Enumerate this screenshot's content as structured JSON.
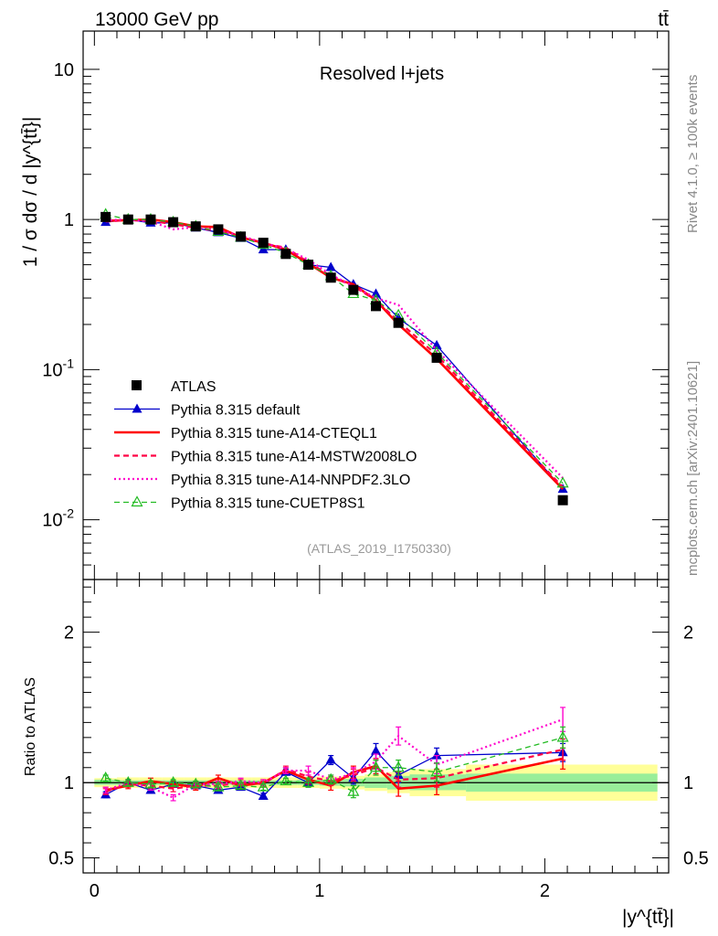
{
  "header": {
    "energy_label": "13000 GeV pp",
    "process_label": "tt̄",
    "analysis_title": "Resolved l+jets",
    "analysis_id": "(ATLAS_2019_I1750330)",
    "side_label_top": "Rivet 4.1.0, ≥ 100k events",
    "side_label_bottom": "mcplots.cern.ch [arXiv:2401.10621]"
  },
  "chart_data": [
    {
      "type": "line",
      "panel": "main",
      "ylabel": "1 / σ dσ / d |y^{tt̄}|",
      "yscale": "log",
      "ylim": [
        0.004,
        18
      ],
      "xlim": [
        -0.05,
        2.55
      ],
      "y_ticks": [
        {
          "value": 10,
          "label": "10"
        },
        {
          "value": 1,
          "label": "1"
        },
        {
          "value": 0.1,
          "label": "10^{-1}"
        },
        {
          "value": 0.01,
          "label": "10^{-2}"
        }
      ],
      "x": [
        0.05,
        0.15,
        0.25,
        0.35,
        0.45,
        0.55,
        0.65,
        0.75,
        0.85,
        0.95,
        1.05,
        1.15,
        1.25,
        1.35,
        1.52,
        2.08
      ],
      "series": [
        {
          "name": "ATLAS",
          "color": "#000000",
          "style": "data",
          "values": [
            1.04,
            1.0,
            1.0,
            0.96,
            0.9,
            0.86,
            0.77,
            0.7,
            0.59,
            0.5,
            0.41,
            0.34,
            0.265,
            0.205,
            0.12,
            0.0135
          ]
        },
        {
          "name": "Pythia 8.315 default",
          "color": "#0000cc",
          "style": "line-triangle",
          "values": [
            0.96,
            1.0,
            0.95,
            0.95,
            0.88,
            0.82,
            0.75,
            0.63,
            0.63,
            0.5,
            0.48,
            0.37,
            0.32,
            0.22,
            0.145,
            0.016
          ]
        },
        {
          "name": "Pythia 8.315 tune-A14-CTEQL1",
          "color": "#ff0000",
          "style": "line",
          "values": [
            0.98,
            0.99,
            1.0,
            0.96,
            0.9,
            0.89,
            0.76,
            0.7,
            0.63,
            0.51,
            0.41,
            0.37,
            0.29,
            0.2,
            0.118,
            0.016
          ]
        },
        {
          "name": "Pythia 8.315 tune-A14-MSTW2008LO",
          "color": "#ff0044",
          "style": "dashed",
          "values": [
            0.97,
            0.99,
            0.98,
            0.93,
            0.88,
            0.84,
            0.77,
            0.69,
            0.65,
            0.52,
            0.42,
            0.36,
            0.29,
            0.21,
            0.125,
            0.0165
          ]
        },
        {
          "name": "Pythia 8.315 tune-A14-NNPDF2.3LO",
          "color": "#ff00cc",
          "style": "dotted",
          "values": [
            0.99,
            1.0,
            0.97,
            0.86,
            0.89,
            0.85,
            0.78,
            0.7,
            0.64,
            0.54,
            0.43,
            0.36,
            0.3,
            0.27,
            0.135,
            0.019
          ]
        },
        {
          "name": "Pythia 8.315 tune-CUETP8S1",
          "color": "#22bb22",
          "style": "dashed-open-triangle",
          "values": [
            1.08,
            1.0,
            1.0,
            0.96,
            0.9,
            0.83,
            0.76,
            0.68,
            0.6,
            0.5,
            0.42,
            0.32,
            0.29,
            0.23,
            0.13,
            0.0175
          ]
        }
      ],
      "legend": "bottom-left"
    },
    {
      "type": "line",
      "panel": "ratio",
      "ylabel": "Ratio to ATLAS",
      "xlabel": "|y^{tt̄}|",
      "ylim": [
        0.4,
        2.35
      ],
      "xlim": [
        -0.05,
        2.55
      ],
      "reference_line": 1,
      "y_ticks": [
        {
          "value": 2,
          "label": "2"
        },
        {
          "value": 1,
          "label": "1"
        },
        {
          "value": 0.5,
          "label": "0.5"
        }
      ],
      "x_ticks": [
        {
          "value": 0,
          "label": "0"
        },
        {
          "value": 1,
          "label": "1"
        },
        {
          "value": 2,
          "label": "2"
        }
      ],
      "uncertainty_bands": [
        {
          "x0": 0.0,
          "x1": 0.1,
          "stat": [
            0.985,
            1.02
          ],
          "total": [
            0.97,
            1.03
          ]
        },
        {
          "x0": 0.1,
          "x1": 0.2,
          "stat": [
            0.985,
            1.015
          ],
          "total": [
            0.965,
            1.035
          ]
        },
        {
          "x0": 0.2,
          "x1": 0.3,
          "stat": [
            0.985,
            1.015
          ],
          "total": [
            0.965,
            1.035
          ]
        },
        {
          "x0": 0.3,
          "x1": 0.4,
          "stat": [
            0.985,
            1.015
          ],
          "total": [
            0.965,
            1.035
          ]
        },
        {
          "x0": 0.4,
          "x1": 0.5,
          "stat": [
            0.985,
            1.015
          ],
          "total": [
            0.965,
            1.035
          ]
        },
        {
          "x0": 0.5,
          "x1": 0.6,
          "stat": [
            0.985,
            1.015
          ],
          "total": [
            0.965,
            1.035
          ]
        },
        {
          "x0": 0.6,
          "x1": 0.7,
          "stat": [
            0.985,
            1.015
          ],
          "total": [
            0.965,
            1.035
          ]
        },
        {
          "x0": 0.7,
          "x1": 0.8,
          "stat": [
            0.985,
            1.015
          ],
          "total": [
            0.965,
            1.035
          ]
        },
        {
          "x0": 0.8,
          "x1": 0.9,
          "stat": [
            0.985,
            1.015
          ],
          "total": [
            0.965,
            1.035
          ]
        },
        {
          "x0": 0.9,
          "x1": 1.0,
          "stat": [
            0.985,
            1.02
          ],
          "total": [
            0.965,
            1.04
          ]
        },
        {
          "x0": 1.0,
          "x1": 1.1,
          "stat": [
            0.98,
            1.02
          ],
          "total": [
            0.96,
            1.04
          ]
        },
        {
          "x0": 1.1,
          "x1": 1.2,
          "stat": [
            0.975,
            1.025
          ],
          "total": [
            0.955,
            1.045
          ]
        },
        {
          "x0": 1.2,
          "x1": 1.3,
          "stat": [
            0.965,
            1.035
          ],
          "total": [
            0.945,
            1.055
          ]
        },
        {
          "x0": 1.3,
          "x1": 1.4,
          "stat": [
            0.955,
            1.045
          ],
          "total": [
            0.93,
            1.07
          ]
        },
        {
          "x0": 1.4,
          "x1": 1.65,
          "stat": [
            0.95,
            1.055
          ],
          "total": [
            0.91,
            1.09
          ]
        },
        {
          "x0": 1.65,
          "x1": 2.5,
          "stat": [
            0.94,
            1.06
          ],
          "total": [
            0.88,
            1.12
          ]
        }
      ],
      "series": [
        {
          "name": "ATLAS",
          "color": "#000000",
          "style": "reference",
          "values": [
            1,
            1,
            1,
            1,
            1,
            1,
            1,
            1,
            1,
            1,
            1,
            1,
            1,
            1,
            1,
            1
          ]
        },
        {
          "name": "Pythia 8.315 default",
          "color": "#0000cc",
          "style": "line-triangle",
          "values": [
            0.92,
            1.0,
            0.95,
            0.99,
            0.98,
            0.95,
            0.97,
            0.91,
            1.07,
            1.0,
            1.15,
            1.03,
            1.21,
            1.05,
            1.18,
            1.2
          ],
          "errors": [
            0.02,
            0.02,
            0.02,
            0.02,
            0.02,
            0.02,
            0.02,
            0.02,
            0.02,
            0.03,
            0.03,
            0.04,
            0.05,
            0.05,
            0.05,
            0.06
          ]
        },
        {
          "name": "Pythia 8.315 tune-A14-CTEQL1",
          "color": "#ff0000",
          "style": "line",
          "values": [
            0.95,
            0.98,
            1.01,
            0.99,
            0.97,
            1.03,
            0.98,
            1.0,
            1.08,
            1.02,
            0.98,
            1.07,
            1.11,
            0.96,
            0.98,
            1.16
          ],
          "errors": [
            0.02,
            0.02,
            0.02,
            0.02,
            0.02,
            0.02,
            0.02,
            0.02,
            0.02,
            0.03,
            0.03,
            0.04,
            0.05,
            0.05,
            0.06,
            0.07
          ]
        },
        {
          "name": "Pythia 8.315 tune-A14-MSTW2008LO",
          "color": "#ff0044",
          "style": "dashed",
          "values": [
            0.94,
            0.99,
            0.98,
            0.96,
            0.98,
            0.98,
            1.0,
            0.99,
            1.09,
            1.04,
            1.01,
            1.05,
            1.1,
            1.02,
            1.03,
            1.22
          ],
          "errors": [
            0.02,
            0.02,
            0.02,
            0.02,
            0.02,
            0.02,
            0.02,
            0.02,
            0.02,
            0.03,
            0.03,
            0.04,
            0.05,
            0.05,
            0.06,
            0.07
          ]
        },
        {
          "name": "Pythia 8.315 tune-A14-NNPDF2.3LO",
          "color": "#ff00cc",
          "style": "dotted",
          "values": [
            0.95,
            1.0,
            0.97,
            0.9,
            0.99,
            0.99,
            1.01,
            1.0,
            1.08,
            1.08,
            1.02,
            1.06,
            1.14,
            1.31,
            1.12,
            1.42
          ],
          "errors": [
            0.02,
            0.02,
            0.02,
            0.02,
            0.02,
            0.02,
            0.02,
            0.02,
            0.02,
            0.03,
            0.03,
            0.04,
            0.05,
            0.06,
            0.06,
            0.08
          ]
        },
        {
          "name": "Pythia 8.315 tune-CUETP8S1",
          "color": "#22bb22",
          "style": "dashed-open-triangle",
          "values": [
            1.03,
            1.0,
            0.99,
            1.0,
            0.99,
            0.97,
            0.98,
            0.97,
            1.01,
            1.0,
            1.02,
            0.94,
            1.1,
            1.1,
            1.07,
            1.3
          ],
          "errors": [
            0.02,
            0.02,
            0.02,
            0.02,
            0.02,
            0.02,
            0.02,
            0.02,
            0.02,
            0.03,
            0.03,
            0.04,
            0.05,
            0.05,
            0.06,
            0.07
          ]
        }
      ]
    }
  ]
}
